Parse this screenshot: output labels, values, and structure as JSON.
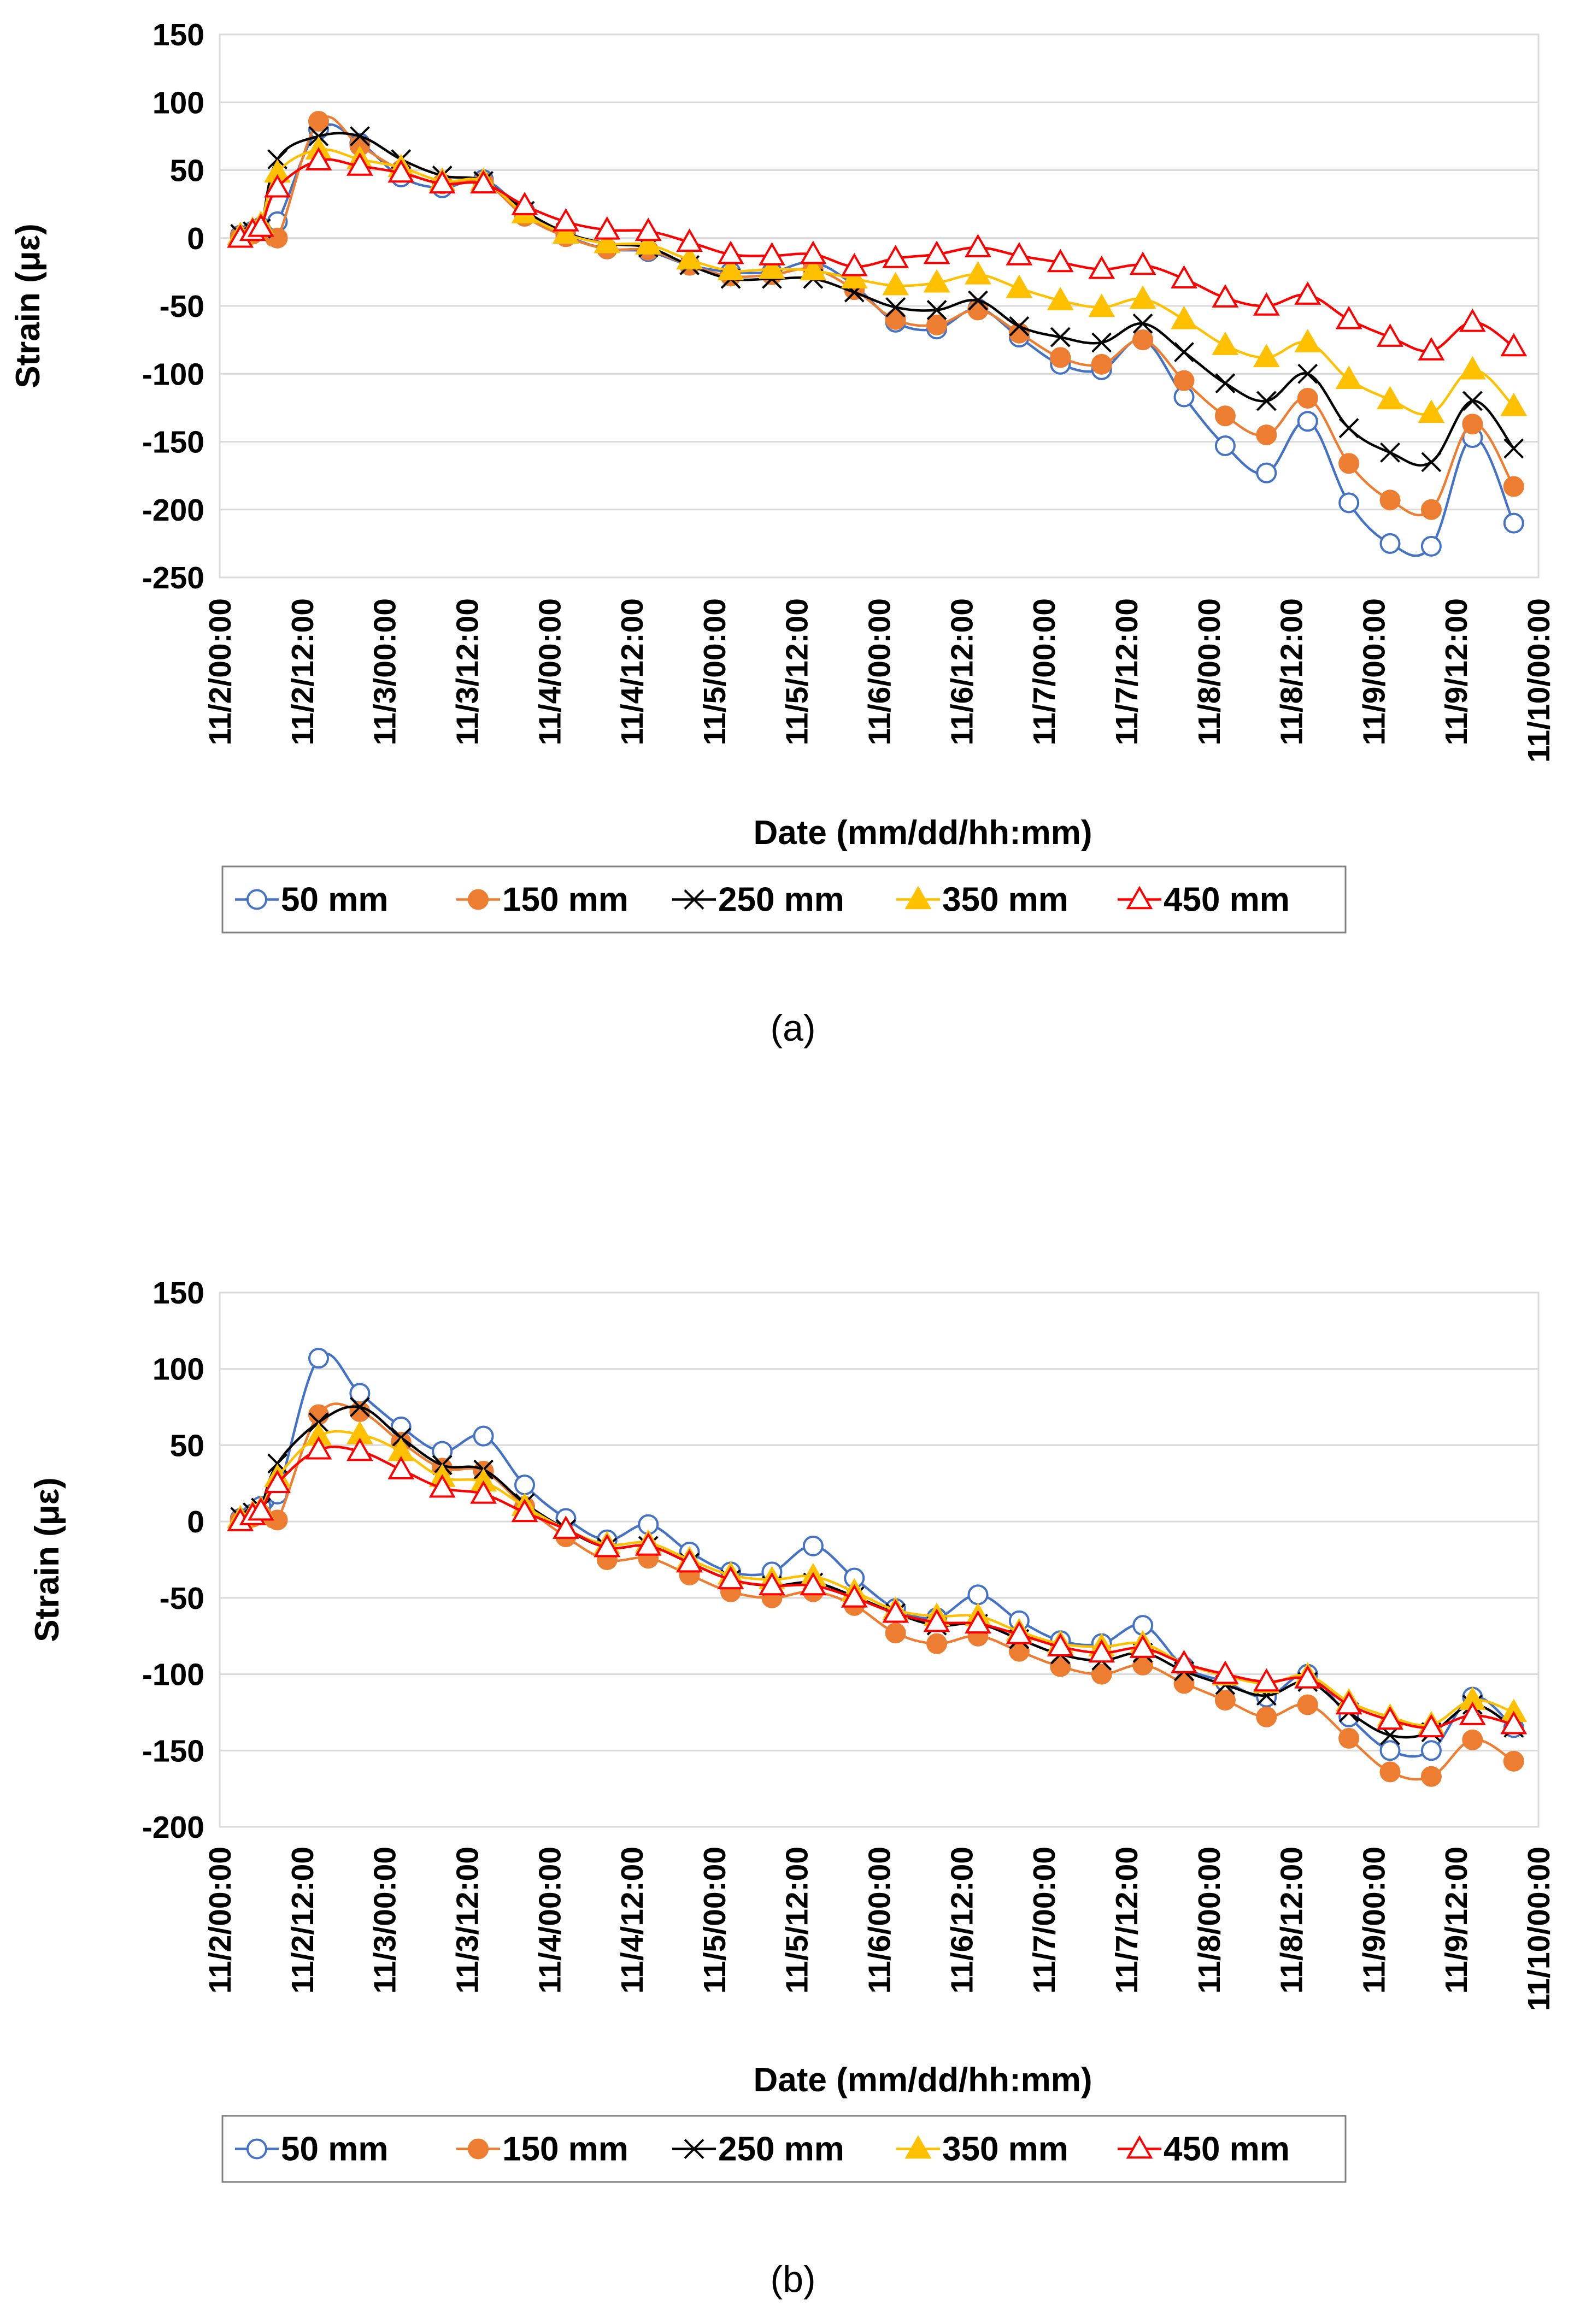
{
  "chart_data": [
    {
      "type": "line",
      "panel_label": "(a)",
      "xlabel": "Date (mm/dd/hh:mm)",
      "ylabel": "Strain (με)",
      "ylim": [
        -250,
        150
      ],
      "yticks": [
        150,
        100,
        50,
        0,
        -50,
        -100,
        -150,
        -200,
        -250
      ],
      "xlim": [
        0,
        8
      ],
      "xtick_labels": [
        "11/2/00:00",
        "11/2/12:00",
        "11/3/00:00",
        "11/3/12:00",
        "11/4/00:00",
        "11/4/12:00",
        "11/5/00:00",
        "11/5/12:00",
        "11/6/00:00",
        "11/6/12:00",
        "11/7/00:00",
        "11/7/12:00",
        "11/8/00:00",
        "11/8/12:00",
        "11/9/00:00",
        "11/9/12:00",
        "11/10/00:00"
      ],
      "x": [
        0.125,
        0.2,
        0.25,
        0.35,
        0.6,
        0.85,
        1.1,
        1.35,
        1.6,
        1.85,
        2.1,
        2.35,
        2.6,
        2.85,
        3.1,
        3.35,
        3.6,
        3.85,
        4.1,
        4.35,
        4.6,
        4.85,
        5.1,
        5.35,
        5.6,
        5.85,
        6.1,
        6.35,
        6.6,
        6.85,
        7.1,
        7.35,
        7.6,
        7.85
      ],
      "series": [
        {
          "name": "50 mm",
          "color": "#4472C4",
          "marker": "circle-open",
          "values": [
            2,
            5,
            8,
            12,
            80,
            70,
            45,
            37,
            43,
            20,
            2,
            -8,
            -10,
            -20,
            -25,
            -25,
            -18,
            -35,
            -62,
            -67,
            -52,
            -73,
            -93,
            -97,
            -75,
            -117,
            -153,
            -173,
            -135,
            -195,
            -225,
            -227,
            -147,
            -210
          ]
        },
        {
          "name": "150 mm",
          "color": "#ED7D31",
          "marker": "circle-filled",
          "values": [
            1,
            3,
            6,
            0,
            86,
            68,
            50,
            40,
            41,
            16,
            1,
            -8,
            -9,
            -20,
            -28,
            -27,
            -23,
            -38,
            -60,
            -64,
            -53,
            -70,
            -88,
            -93,
            -75,
            -105,
            -131,
            -145,
            -118,
            -166,
            -193,
            -200,
            -137,
            -183
          ]
        },
        {
          "name": "250 mm",
          "color": "#000000",
          "marker": "x",
          "values": [
            3,
            5,
            7,
            58,
            75,
            75,
            58,
            46,
            42,
            20,
            4,
            -4,
            -7,
            -20,
            -30,
            -30,
            -30,
            -40,
            -51,
            -53,
            -46,
            -65,
            -73,
            -77,
            -63,
            -84,
            -107,
            -120,
            -100,
            -140,
            -158,
            -165,
            -120,
            -155
          ]
        },
        {
          "name": "350 mm",
          "color": "#FFC000",
          "marker": "triangle-filled",
          "values": [
            2,
            6,
            10,
            48,
            65,
            58,
            52,
            42,
            42,
            18,
            3,
            -4,
            -5,
            -16,
            -24,
            -23,
            -24,
            -30,
            -35,
            -33,
            -27,
            -37,
            -46,
            -51,
            -45,
            -60,
            -79,
            -88,
            -77,
            -104,
            -119,
            -129,
            -97,
            -124
          ]
        },
        {
          "name": "450 mm",
          "color": "#FF0000",
          "marker": "triangle-open",
          "values": [
            0,
            5,
            8,
            37,
            57,
            53,
            48,
            40,
            40,
            24,
            12,
            6,
            5,
            -3,
            -12,
            -13,
            -12,
            -21,
            -15,
            -12,
            -7,
            -13,
            -18,
            -23,
            -20,
            -30,
            -44,
            -50,
            -42,
            -60,
            -73,
            -83,
            -62,
            -80
          ]
        }
      ]
    },
    {
      "type": "line",
      "panel_label": "(b)",
      "xlabel": "Date (mm/dd/hh:mm)",
      "ylabel": "Strain (με)",
      "ylim": [
        -200,
        150
      ],
      "yticks": [
        150,
        100,
        50,
        0,
        -50,
        -100,
        -150,
        -200
      ],
      "xlim": [
        0,
        8
      ],
      "xtick_labels": [
        "11/2/00:00",
        "11/2/12:00",
        "11/3/00:00",
        "11/3/12:00",
        "11/4/00:00",
        "11/4/12:00",
        "11/5/00:00",
        "11/5/12:00",
        "11/6/00:00",
        "11/6/12:00",
        "11/7/00:00",
        "11/7/12:00",
        "11/8/00:00",
        "11/8/12:00",
        "11/9/00:00",
        "11/9/12:00",
        "11/10/00:00"
      ],
      "x": [
        0.125,
        0.2,
        0.25,
        0.35,
        0.6,
        0.85,
        1.1,
        1.35,
        1.6,
        1.85,
        2.1,
        2.35,
        2.6,
        2.85,
        3.1,
        3.35,
        3.6,
        3.85,
        4.1,
        4.35,
        4.6,
        4.85,
        5.1,
        5.35,
        5.6,
        5.85,
        6.1,
        6.35,
        6.6,
        6.85,
        7.1,
        7.35,
        7.6,
        7.85
      ],
      "series": [
        {
          "name": "50 mm",
          "color": "#4472C4",
          "marker": "circle-open",
          "values": [
            2,
            5,
            10,
            18,
            107,
            84,
            62,
            46,
            56,
            24,
            2,
            -12,
            -2,
            -20,
            -33,
            -33,
            -16,
            -37,
            -57,
            -63,
            -48,
            -65,
            -78,
            -80,
            -68,
            -95,
            -105,
            -115,
            -100,
            -128,
            -150,
            -150,
            -115,
            -135
          ]
        },
        {
          "name": "150 mm",
          "color": "#ED7D31",
          "marker": "circle-filled",
          "values": [
            1,
            3,
            5,
            1,
            70,
            72,
            52,
            35,
            33,
            10,
            -10,
            -25,
            -24,
            -35,
            -46,
            -50,
            -46,
            -55,
            -73,
            -80,
            -75,
            -85,
            -95,
            -100,
            -94,
            -106,
            -117,
            -128,
            -120,
            -142,
            -164,
            -167,
            -143,
            -157
          ]
        },
        {
          "name": "250 mm",
          "color": "#000000",
          "marker": "x",
          "values": [
            3,
            6,
            9,
            38,
            65,
            75,
            55,
            37,
            34,
            12,
            -5,
            -17,
            -16,
            -27,
            -38,
            -42,
            -40,
            -49,
            -60,
            -68,
            -67,
            -77,
            -87,
            -91,
            -86,
            -98,
            -107,
            -114,
            -105,
            -125,
            -140,
            -138,
            -120,
            -135
          ]
        },
        {
          "name": "350 mm",
          "color": "#FFC000",
          "marker": "triangle-filled",
          "values": [
            2,
            5,
            8,
            29,
            56,
            57,
            46,
            29,
            26,
            10,
            -5,
            -15,
            -14,
            -25,
            -35,
            -38,
            -36,
            -46,
            -58,
            -62,
            -62,
            -72,
            -80,
            -82,
            -80,
            -93,
            -101,
            -106,
            -101,
            -118,
            -128,
            -133,
            -117,
            -125
          ]
        },
        {
          "name": "450 mm",
          "color": "#FF0000",
          "marker": "triangle-open",
          "values": [
            0,
            4,
            7,
            25,
            47,
            46,
            34,
            22,
            18,
            6,
            -5,
            -17,
            -16,
            -27,
            -38,
            -42,
            -42,
            -50,
            -60,
            -66,
            -67,
            -74,
            -82,
            -86,
            -83,
            -93,
            -100,
            -105,
            -103,
            -120,
            -130,
            -135,
            -127,
            -133
          ]
        }
      ]
    }
  ]
}
